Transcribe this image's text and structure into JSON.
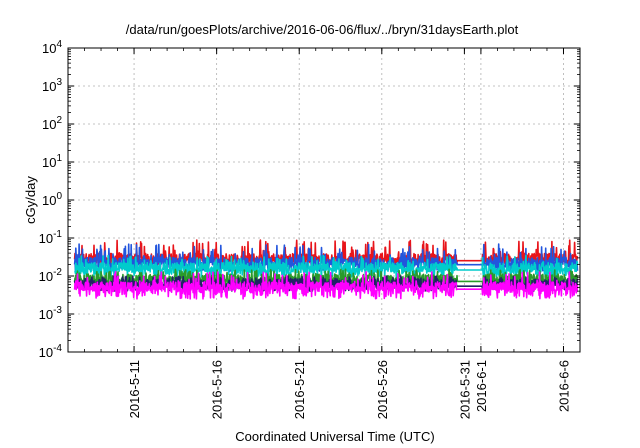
{
  "chart_data": {
    "type": "line",
    "title": "/data/run/goesPlots/archive/2016-06-06/flux/../bryn/31daysEarth.plot",
    "xlabel": "Coordinated Universal Time (UTC)",
    "ylabel": "cGy/day",
    "y_scale": "log",
    "ylim": [
      0.0001,
      10000
    ],
    "y_ticks": [
      {
        "value": 0.0001,
        "base": "10",
        "exp": "-4"
      },
      {
        "value": 0.001,
        "base": "10",
        "exp": "-3"
      },
      {
        "value": 0.01,
        "base": "10",
        "exp": "-2"
      },
      {
        "value": 0.1,
        "base": "10",
        "exp": "-1"
      },
      {
        "value": 1,
        "base": "10",
        "exp": "0"
      },
      {
        "value": 10,
        "base": "10",
        "exp": "1"
      },
      {
        "value": 100,
        "base": "10",
        "exp": "2"
      },
      {
        "value": 1000,
        "base": "10",
        "exp": "3"
      },
      {
        "value": 10000,
        "base": "10",
        "exp": "4"
      }
    ],
    "xlim": [
      "2016-05-07",
      "2016-06-07"
    ],
    "x_ticks": [
      "2016-5-11",
      "2016-5-16",
      "2016-5-21",
      "2016-5-26",
      "2016-5-31",
      "2016-6-1",
      "2016-6-6"
    ],
    "x_tick_dates": [
      "2016-05-11",
      "2016-05-16",
      "2016-05-21",
      "2016-05-26",
      "2016-05-31",
      "2016-06-01",
      "2016-06-06"
    ],
    "grid": true,
    "legend": "none",
    "data_gap": [
      "2016-05-30",
      "2016-06-01"
    ],
    "series": [
      {
        "color": "#e8141a",
        "peaks": 0.09,
        "baseline": 0.028,
        "low": 0.02
      },
      {
        "color": "#2255dd",
        "peaks": 0.07,
        "baseline": 0.022,
        "low": 0.013
      },
      {
        "color": "#00cccc",
        "peaks": 0.035,
        "baseline": 0.016,
        "low": 0.009
      },
      {
        "color": "#2a9a2a",
        "peaks": 0.015,
        "baseline": 0.008,
        "low": 0.005
      },
      {
        "color": "#222266",
        "peaks": 0.01,
        "baseline": 0.006,
        "low": 0.004
      },
      {
        "color": "#ff00ff",
        "peaks": 0.013,
        "baseline": 0.005,
        "low": 0.0025
      }
    ]
  }
}
